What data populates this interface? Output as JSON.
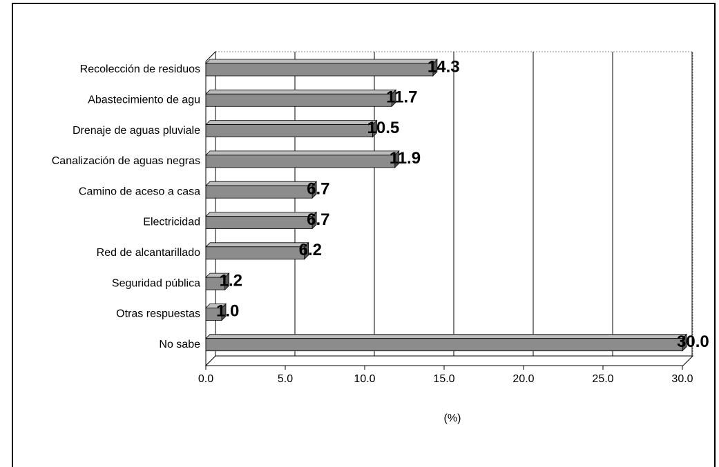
{
  "chart_data": {
    "type": "bar",
    "orientation": "horizontal",
    "categories": [
      "Recolección de residuos",
      "Abastecimiento de agu",
      "Drenaje de aguas pluviale",
      "Canalización de aguas negras",
      "Camino de aceso a casa",
      "Electricidad",
      "Red de alcantarillado",
      "Seguridad pública",
      "Otras respuestas",
      "No sabe"
    ],
    "values": [
      14.3,
      11.7,
      10.5,
      11.9,
      6.7,
      6.7,
      6.2,
      1.2,
      1.0,
      30.0
    ],
    "value_labels": [
      "14.3",
      "11.7",
      "10.5",
      "11.9",
      "6.7",
      "6.7",
      "6.2",
      "1.2",
      "1.0",
      "30.0"
    ],
    "color": "#8c8c8c",
    "xlim": [
      0,
      30
    ],
    "xticks": [
      {
        "value": 0,
        "label": "0.0"
      },
      {
        "value": 5,
        "label": "5.0"
      },
      {
        "value": 10,
        "label": "10.0"
      },
      {
        "value": 15,
        "label": "15.0"
      },
      {
        "value": 20,
        "label": "20.0"
      },
      {
        "value": 25,
        "label": "25.0"
      },
      {
        "value": 30,
        "label": "30.0"
      }
    ],
    "xlabel": "(%)",
    "grid": true
  }
}
